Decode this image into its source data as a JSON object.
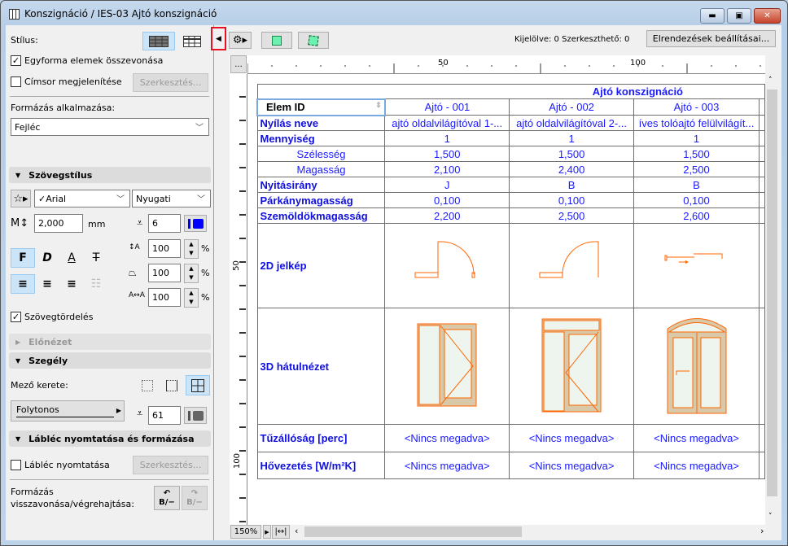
{
  "window": {
    "title": "Konszignáció / IES-03 Ajtó konszignáció",
    "icon": "table-icon"
  },
  "left": {
    "style_label": "Stílus:",
    "merge_label": "Egyforma elemek összevonása",
    "merge_checked": true,
    "header_label": "Címsor megjelenítése",
    "header_checked": false,
    "edit_button": "Szerkesztés...",
    "apply_label": "Formázás alkalmazása:",
    "apply_value": "Fejléc",
    "textstyle_section": "Szövegstílus",
    "font": "✓Arial",
    "script": "Nyugati",
    "text_height": "2,000",
    "unit": "mm",
    "pen": "6",
    "bold": "F",
    "italic": "D",
    "underline": "A",
    "strike": "T",
    "line_spacing": "100",
    "width_factor": "100",
    "char_spacing": "100",
    "percent": "%",
    "wrap_label": "Szövegtördelés",
    "wrap_checked": true,
    "preview_section": "Előnézet",
    "border_section": "Szegély",
    "cell_frame_label": "Mező kerete:",
    "line_type": "Folytonos",
    "border_pen": "61",
    "footer_section": "Lábléc nyomtatása és formázása",
    "footer_label": "Lábléc nyomtatása",
    "footer_checked": false,
    "footer_edit": "Szerkesztés...",
    "undo_label_1": "Formázás",
    "undo_label_2": "visszavonása/végrehajtása:",
    "undo_glyph": "B/−",
    "redo_glyph": "B/−"
  },
  "toolbar": {
    "status": "Kijelölve: 0  Szerkeszthető: 0",
    "layout_button": "Elrendezések beállításai...",
    "more": "..."
  },
  "ruler": {
    "top": [
      "50",
      "100"
    ],
    "left": [
      "50",
      "100"
    ]
  },
  "schedule": {
    "title": "Ajtó konszignáció",
    "header": "Elem ID",
    "columns": [
      "Ajtó - 001",
      "Ajtó - 002",
      "Ajtó - 003"
    ],
    "rows": [
      {
        "label": "Nyílás neve",
        "values": [
          "ajtó oldalvilágítóval 1-...",
          "ajtó oldalvilágítóval 2-...",
          "íves tolóajtó felülvilágít..."
        ]
      },
      {
        "label": "Mennyiség",
        "values": [
          "1",
          "1",
          "1"
        ]
      },
      {
        "label": "Szélesség",
        "indent": true,
        "values": [
          "1,500",
          "1,500",
          "1,500"
        ]
      },
      {
        "label": "Magasság",
        "indent": true,
        "values": [
          "2,100",
          "2,400",
          "2,500"
        ]
      },
      {
        "label": "Nyitásirány",
        "values": [
          "J",
          "B",
          "B"
        ]
      },
      {
        "label": "Párkánymagasság",
        "values": [
          "0,100",
          "0,100",
          "0,100"
        ]
      },
      {
        "label": "Szemöldökmagasság",
        "values": [
          "2,200",
          "2,500",
          "2,600"
        ]
      },
      {
        "label": "2D jelkép"
      },
      {
        "label": "3D hátulnézet"
      },
      {
        "label": "Tűzállóság [perc]",
        "values": [
          "<Nincs megadva>",
          "<Nincs megadva>",
          "<Nincs megadva>"
        ]
      },
      {
        "label": "Hővezetés [W/m²K]",
        "values": [
          "<Nincs megadva>",
          "<Nincs megadva>",
          "<Nincs megadva>"
        ]
      }
    ]
  },
  "footer": {
    "zoom": "150%"
  },
  "colors": {
    "accent": "#1a1aff",
    "door": "#ff6600",
    "door_fill": "#d9c9a8",
    "glass": "#eef5ee",
    "highlight": "#e81123"
  }
}
